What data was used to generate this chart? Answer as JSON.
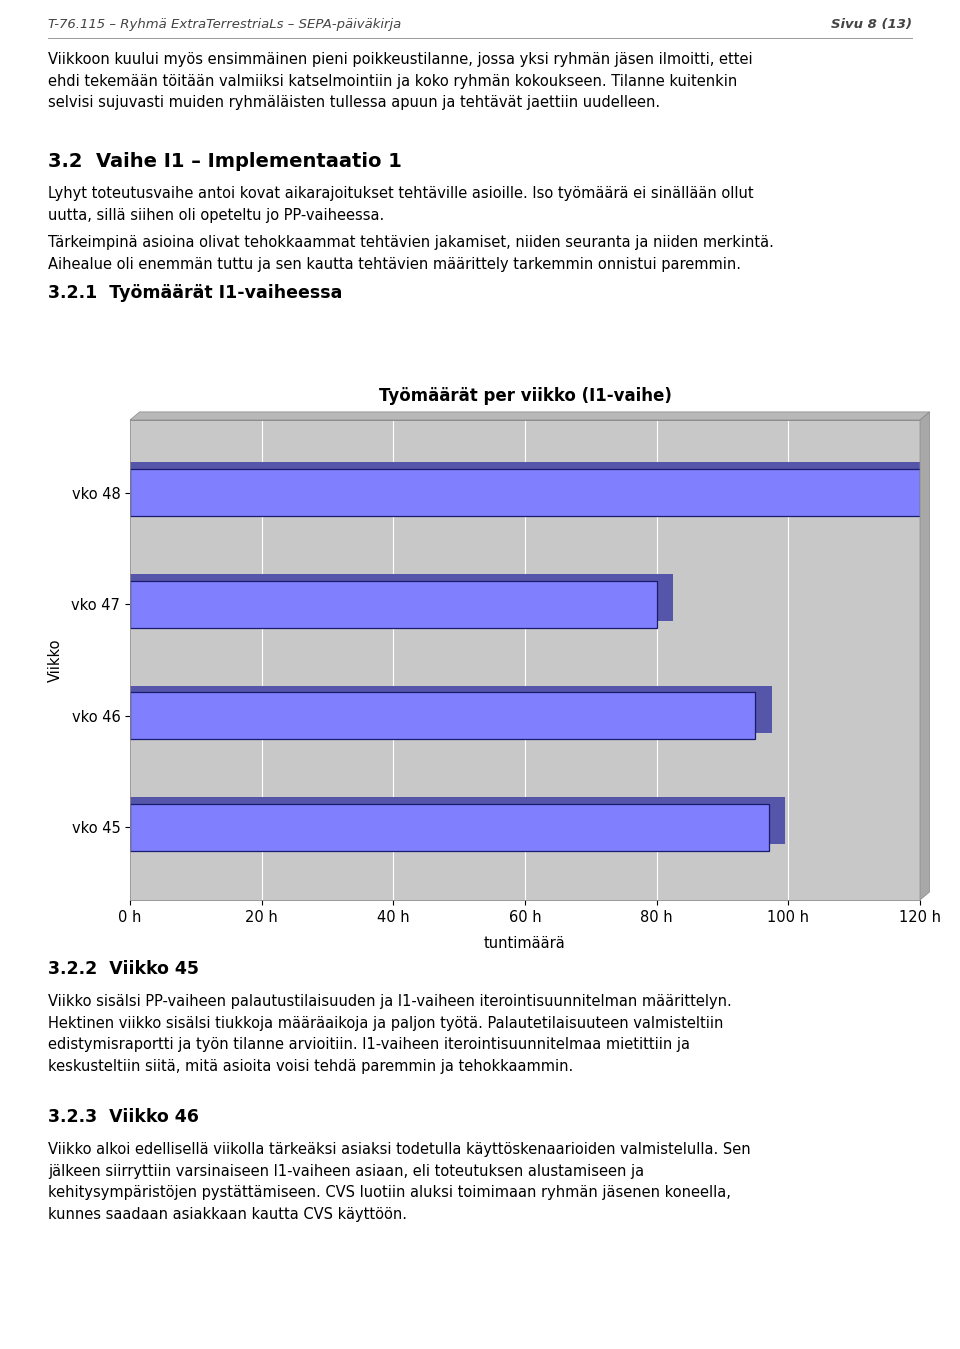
{
  "header_left": "T-76.115 – Ryhmä ExtraTerrestriaLs – SEPA-päiväkirja",
  "header_right": "Sivu 8 (13)",
  "paragraph1": "Viikkoon kuului myös ensimmäinen pieni poikkeustilanne, jossa yksi ryhmän jäsen ilmoitti, ettei\nehdi tekemään töitään valmiiksi katselmointiin ja koko ryhmän kokoukseen. Tilanne kuitenkin\nselvisi sujuvasti muiden ryhmäläisten tullessa apuun ja tehtävät jaettiin uudelleen.",
  "section_title": "3.2  Vaihe I1 – Implementaatio 1",
  "section_text1": "Lyhyt toteutusvaihe antoi kovat aikarajoitukset tehtäville asioille. Iso työmäärä ei sinällään ollut\nuutta, sillä siihen oli opeteltu jo PP-vaiheessa.",
  "section_text2": "Tärkeimpinä asioina olivat tehokkaammat tehtävien jakamiset, niiden seuranta ja niiden merkintä.\nAihealue oli enemmän tuttu ja sen kautta tehtävien määrittely tarkemmin onnistui paremmin.",
  "subsection_title": "3.2.1  Työmäärät I1-vaiheessa",
  "chart_title": "Työmäärät per viikko (I1-vaihe)",
  "chart_ylabel": "Viikko",
  "chart_xlabel": "tuntimäärä",
  "categories": [
    "vko 45",
    "vko 46",
    "vko 47",
    "vko 48"
  ],
  "values": [
    97,
    95,
    80,
    120
  ],
  "bar_color": "#8080ff",
  "bar_edge_color": "#1a1a6e",
  "bar_shadow_color": "#5555aa",
  "bg_color": "#c8c8c8",
  "plot_bg_color": "#c8c8c8",
  "xlim": [
    0,
    120
  ],
  "xticks": [
    0,
    20,
    40,
    60,
    80,
    100,
    120
  ],
  "xtick_labels": [
    "0 h",
    "20 h",
    "40 h",
    "60 h",
    "80 h",
    "100 h",
    "120 h"
  ],
  "section322_title": "3.2.2  Viikko 45",
  "section322_text": "Viikko sisälsi PP-vaiheen palautustilaisuuden ja I1-vaiheen iterointisuunnitelman määrittelyn.\nHektinen viikko sisälsi tiukkoja määräaikoja ja paljon työtä. Palautetilaisuuteen valmisteltiin\nedistymisraportti ja työn tilanne arvioitiin. I1-vaiheen iterointisuunnitelmaa mietittiin ja\nkeskusteltiin siitä, mitä asioita voisi tehdä paremmin ja tehokkaammin.",
  "section323_title": "3.2.3  Viikko 46",
  "section323_text": "Viikko alkoi edellisellä viikolla tärkeäksi asiaksi todetulla käyttöskenaarioiden valmistelulla. Sen\njälkeen siirryttiin varsinaiseen I1-vaiheen asiaan, eli toteutuksen alustamiseen ja\nkehitysympäristöjen pystättämiseen. CVS luotiin aluksi toimimaan ryhmän jäsenen koneella,\nkunnes saadaan asiakkaan kautta CVS käyttöön.",
  "page_bg": "#ffffff"
}
